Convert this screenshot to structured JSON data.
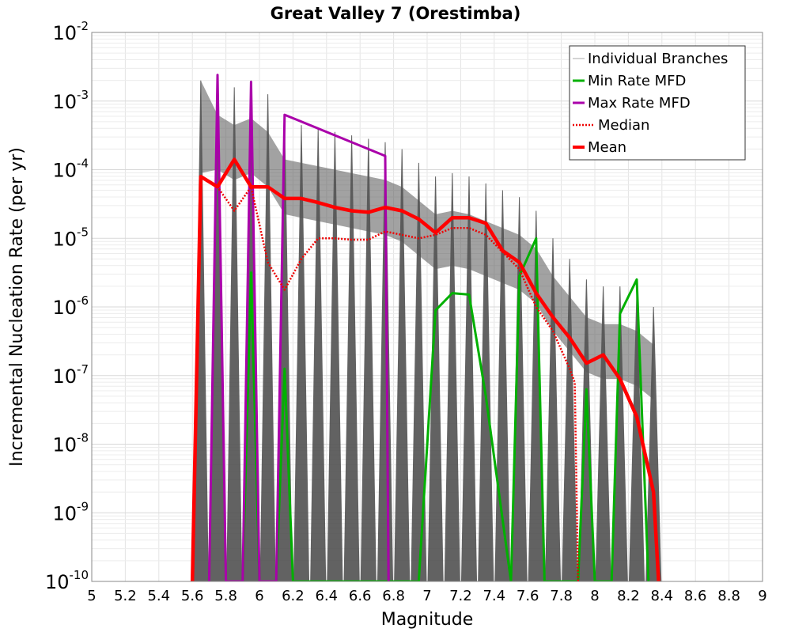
{
  "chart_data": {
    "type": "line",
    "title": "Great Valley 7 (Orestimba)",
    "xlabel": "Magnitude",
    "ylabel": "Incremental Nucleation Rate (per yr)",
    "xlim": [
      5,
      9
    ],
    "ylim_log10": [
      -10,
      -2
    ],
    "x_ticks": [
      "5",
      "5.2",
      "5.4",
      "5.6",
      "5.8",
      "6",
      "6.2",
      "6.4",
      "6.6",
      "6.8",
      "7",
      "7.2",
      "7.4",
      "7.6",
      "7.8",
      "8",
      "8.2",
      "8.4",
      "8.6",
      "8.8",
      "9"
    ],
    "y_tick_exponents": [
      "-10",
      "-9",
      "-8",
      "-7",
      "-6",
      "-5",
      "-4",
      "-3",
      "-2"
    ],
    "y_tick_base": "10",
    "grid": true,
    "legend_position": "top-right",
    "series": [
      {
        "name": "Individual Branches",
        "color": "#555555",
        "style": "band",
        "envelope": {
          "x": [
            5.65,
            5.75,
            5.85,
            5.95,
            6.05,
            6.15,
            6.25,
            6.35,
            6.45,
            6.55,
            6.65,
            6.75,
            6.85,
            6.95,
            7.05,
            7.15,
            7.25,
            7.35,
            7.45,
            7.55,
            7.65,
            7.75,
            7.85,
            7.95,
            8.05,
            8.15,
            8.25,
            8.35
          ],
          "upper_log10": [
            -2.7,
            -2.65,
            -2.8,
            -2.7,
            -2.9,
            -3.3,
            -3.35,
            -3.4,
            -3.45,
            -3.5,
            -3.55,
            -3.6,
            -3.7,
            -3.9,
            -4.1,
            -4.05,
            -4.1,
            -4.2,
            -4.3,
            -4.4,
            -4.6,
            -5.0,
            -5.3,
            -5.6,
            -5.7,
            -5.7,
            -5.8,
            -6.0
          ],
          "lower_log10": [
            -10,
            -10,
            -10,
            -10,
            -10,
            -10,
            -10,
            -10,
            -10,
            -10,
            -10,
            -10,
            -10,
            -10,
            -10,
            -10,
            -10,
            -10,
            -10,
            -10,
            -10,
            -10,
            -10,
            -10,
            -10,
            -10,
            -10,
            -10
          ]
        }
      },
      {
        "name": "Min Rate MFD",
        "color": "#00b000",
        "style": "solid",
        "x": [
          5.9,
          5.95,
          6.0,
          6.1,
          6.15,
          6.2,
          6.95,
          7.05,
          7.15,
          7.25,
          7.35,
          7.5,
          7.55,
          7.65,
          7.7,
          7.9,
          7.95,
          8.0,
          8.1,
          8.15,
          8.25,
          8.32
        ],
        "log10": [
          -10,
          -5.5,
          -10,
          -10,
          -6.9,
          -10,
          -10,
          -6.05,
          -5.8,
          -5.82,
          -7.3,
          -10,
          -5.55,
          -5.0,
          -10,
          -10,
          -7.2,
          -10,
          -10,
          -6.1,
          -5.6,
          -10
        ]
      },
      {
        "name": "Max Rate MFD",
        "color": "#aa00aa",
        "style": "solid",
        "x": [
          5.7,
          5.75,
          5.8,
          5.9,
          5.95,
          6.0,
          6.1,
          6.15,
          6.75,
          6.77
        ],
        "log10": [
          -10,
          -2.62,
          -10,
          -10,
          -2.72,
          -10,
          -10,
          -3.2,
          -3.8,
          -10
        ]
      },
      {
        "name": "Median",
        "color": "#ee0000",
        "style": "dotted",
        "x": [
          5.6,
          5.65,
          5.75,
          5.85,
          5.95,
          6.05,
          6.15,
          6.25,
          6.35,
          6.45,
          6.55,
          6.65,
          6.75,
          6.85,
          6.95,
          7.05,
          7.15,
          7.25,
          7.35,
          7.45,
          7.55,
          7.65,
          7.75,
          7.85,
          7.88,
          7.9
        ],
        "log10": [
          -10,
          -4.1,
          -4.25,
          -4.6,
          -4.25,
          -5.35,
          -5.75,
          -5.3,
          -5.0,
          -5.0,
          -5.02,
          -5.02,
          -4.9,
          -4.95,
          -5.0,
          -4.95,
          -4.85,
          -4.85,
          -4.95,
          -5.2,
          -5.45,
          -6.0,
          -6.35,
          -6.9,
          -7.1,
          -10
        ]
      },
      {
        "name": "Mean",
        "color": "#ff0000",
        "style": "thick",
        "x": [
          5.6,
          5.65,
          5.75,
          5.85,
          5.95,
          6.05,
          6.15,
          6.25,
          6.35,
          6.45,
          6.55,
          6.65,
          6.75,
          6.85,
          6.95,
          7.05,
          7.15,
          7.25,
          7.35,
          7.45,
          7.55,
          7.65,
          7.75,
          7.85,
          7.95,
          8.05,
          8.15,
          8.25,
          8.35,
          8.38
        ],
        "log10": [
          -10,
          -4.1,
          -4.25,
          -3.85,
          -4.25,
          -4.25,
          -4.42,
          -4.42,
          -4.48,
          -4.55,
          -4.6,
          -4.62,
          -4.55,
          -4.6,
          -4.72,
          -4.92,
          -4.7,
          -4.7,
          -4.78,
          -5.18,
          -5.35,
          -5.8,
          -6.15,
          -6.45,
          -6.82,
          -6.7,
          -7.05,
          -7.6,
          -8.7,
          -10
        ]
      }
    ]
  }
}
